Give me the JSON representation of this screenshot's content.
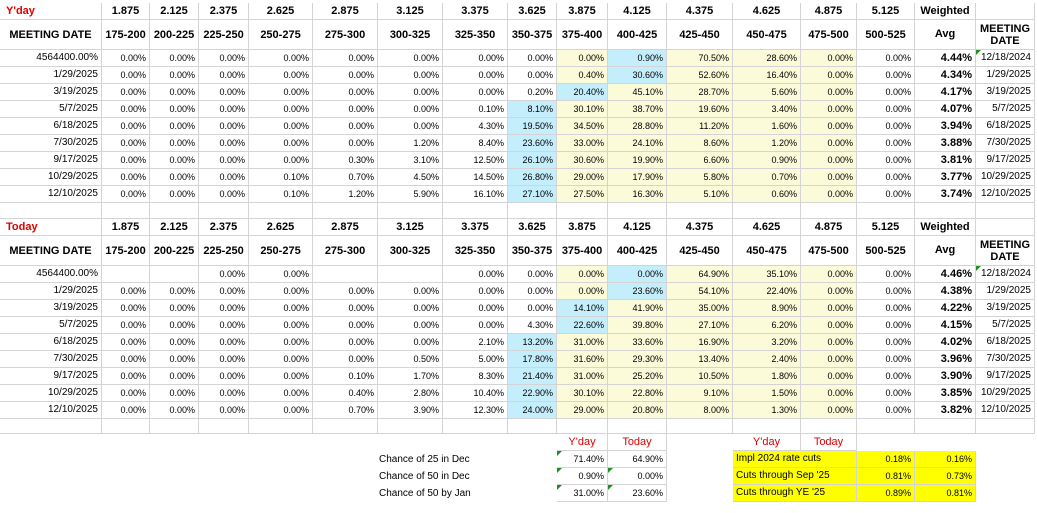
{
  "sections": [
    {
      "title": "Y'day",
      "strikes": [
        "1.875",
        "2.125",
        "2.375",
        "2.625",
        "2.875",
        "3.125",
        "3.375",
        "3.625",
        "3.875",
        "4.125",
        "4.375",
        "4.625",
        "4.875",
        "5.125"
      ],
      "weighted_label": "Weighted",
      "meeting_date_label": "MEETING DATE",
      "ranges": [
        "175-200",
        "200-225",
        "225-250",
        "250-275",
        "275-300",
        "300-325",
        "325-350",
        "350-375",
        "375-400",
        "400-425",
        "425-450",
        "450-475",
        "475-500",
        "500-525"
      ],
      "avg_label": "Avg",
      "meeting_date_right_label": "MEETING DATE",
      "rows": [
        {
          "date": "4564400.00%",
          "cells": [
            "0.00%",
            "0.00%",
            "0.00%",
            "0.00%",
            "0.00%",
            "0.00%",
            "0.00%",
            "0.00%",
            "0.00%",
            "0.90%",
            "70.50%",
            "28.60%",
            "0.00%",
            "0.00%"
          ],
          "avg": "4.44%",
          "right_date": "12/18/2024"
        },
        {
          "date": "1/29/2025",
          "cells": [
            "0.00%",
            "0.00%",
            "0.00%",
            "0.00%",
            "0.00%",
            "0.00%",
            "0.00%",
            "0.00%",
            "0.40%",
            "30.60%",
            "52.60%",
            "16.40%",
            "0.00%",
            "0.00%"
          ],
          "avg": "4.34%",
          "right_date": "1/29/2025"
        },
        {
          "date": "3/19/2025",
          "cells": [
            "0.00%",
            "0.00%",
            "0.00%",
            "0.00%",
            "0.00%",
            "0.00%",
            "0.00%",
            "0.20%",
            "20.40%",
            "45.10%",
            "28.70%",
            "5.60%",
            "0.00%",
            "0.00%"
          ],
          "avg": "4.17%",
          "right_date": "3/19/2025"
        },
        {
          "date": "5/7/2025",
          "cells": [
            "0.00%",
            "0.00%",
            "0.00%",
            "0.00%",
            "0.00%",
            "0.00%",
            "0.10%",
            "8.10%",
            "30.10%",
            "38.70%",
            "19.60%",
            "3.40%",
            "0.00%",
            "0.00%"
          ],
          "avg": "4.07%",
          "right_date": "5/7/2025"
        },
        {
          "date": "6/18/2025",
          "cells": [
            "0.00%",
            "0.00%",
            "0.00%",
            "0.00%",
            "0.00%",
            "0.00%",
            "4.30%",
            "19.50%",
            "34.50%",
            "28.80%",
            "11.20%",
            "1.60%",
            "0.00%",
            "0.00%"
          ],
          "avg": "3.94%",
          "right_date": "6/18/2025"
        },
        {
          "date": "7/30/2025",
          "cells": [
            "0.00%",
            "0.00%",
            "0.00%",
            "0.00%",
            "0.00%",
            "1.20%",
            "8.40%",
            "23.60%",
            "33.00%",
            "24.10%",
            "8.60%",
            "1.20%",
            "0.00%",
            "0.00%"
          ],
          "avg": "3.88%",
          "right_date": "7/30/2025"
        },
        {
          "date": "9/17/2025",
          "cells": [
            "0.00%",
            "0.00%",
            "0.00%",
            "0.00%",
            "0.30%",
            "3.10%",
            "12.50%",
            "26.10%",
            "30.60%",
            "19.90%",
            "6.60%",
            "0.90%",
            "0.00%",
            "0.00%"
          ],
          "avg": "3.81%",
          "right_date": "9/17/2025"
        },
        {
          "date": "10/29/2025",
          "cells": [
            "0.00%",
            "0.00%",
            "0.00%",
            "0.10%",
            "0.70%",
            "4.50%",
            "14.50%",
            "26.80%",
            "29.00%",
            "17.90%",
            "5.80%",
            "0.70%",
            "0.00%",
            "0.00%"
          ],
          "avg": "3.77%",
          "right_date": "10/29/2025"
        },
        {
          "date": "12/10/2025",
          "cells": [
            "0.00%",
            "0.00%",
            "0.00%",
            "0.10%",
            "1.20%",
            "5.90%",
            "16.10%",
            "27.10%",
            "27.50%",
            "16.30%",
            "5.10%",
            "0.60%",
            "0.00%",
            "0.00%"
          ],
          "avg": "3.74%",
          "right_date": "12/10/2025"
        }
      ]
    },
    {
      "title": "Today",
      "strikes": [
        "1.875",
        "2.125",
        "2.375",
        "2.625",
        "2.875",
        "3.125",
        "3.375",
        "3.625",
        "3.875",
        "4.125",
        "4.375",
        "4.625",
        "4.875",
        "5.125"
      ],
      "weighted_label": "Weighted",
      "meeting_date_label": "MEETING DATE",
      "ranges": [
        "175-200",
        "200-225",
        "225-250",
        "250-275",
        "275-300",
        "300-325",
        "325-350",
        "350-375",
        "375-400",
        "400-425",
        "425-450",
        "450-475",
        "475-500",
        "500-525"
      ],
      "avg_label": "Avg",
      "meeting_date_right_label": "MEETING DATE",
      "rows": [
        {
          "date": "4564400.00%",
          "cells": [
            "",
            "",
            "0.00%",
            "0.00%",
            "",
            "",
            "0.00%",
            "0.00%",
            "0.00%",
            "0.00%",
            "64.90%",
            "35.10%",
            "0.00%",
            "0.00%"
          ],
          "avg": "4.46%",
          "right_date": "12/18/2024"
        },
        {
          "date": "1/29/2025",
          "cells": [
            "0.00%",
            "0.00%",
            "0.00%",
            "0.00%",
            "0.00%",
            "0.00%",
            "0.00%",
            "0.00%",
            "0.00%",
            "23.60%",
            "54.10%",
            "22.40%",
            "0.00%",
            "0.00%"
          ],
          "avg": "4.38%",
          "right_date": "1/29/2025"
        },
        {
          "date": "3/19/2025",
          "cells": [
            "0.00%",
            "0.00%",
            "0.00%",
            "0.00%",
            "0.00%",
            "0.00%",
            "0.00%",
            "0.00%",
            "14.10%",
            "41.90%",
            "35.00%",
            "8.90%",
            "0.00%",
            "0.00%"
          ],
          "avg": "4.22%",
          "right_date": "3/19/2025"
        },
        {
          "date": "5/7/2025",
          "cells": [
            "0.00%",
            "0.00%",
            "0.00%",
            "0.00%",
            "0.00%",
            "0.00%",
            "0.00%",
            "4.30%",
            "22.60%",
            "39.80%",
            "27.10%",
            "6.20%",
            "0.00%",
            "0.00%"
          ],
          "avg": "4.15%",
          "right_date": "5/7/2025"
        },
        {
          "date": "6/18/2025",
          "cells": [
            "0.00%",
            "0.00%",
            "0.00%",
            "0.00%",
            "0.00%",
            "0.00%",
            "2.10%",
            "13.20%",
            "31.00%",
            "33.60%",
            "16.90%",
            "3.20%",
            "0.00%",
            "0.00%"
          ],
          "avg": "4.02%",
          "right_date": "6/18/2025"
        },
        {
          "date": "7/30/2025",
          "cells": [
            "0.00%",
            "0.00%",
            "0.00%",
            "0.00%",
            "0.00%",
            "0.50%",
            "5.00%",
            "17.80%",
            "31.60%",
            "29.30%",
            "13.40%",
            "2.40%",
            "0.00%",
            "0.00%"
          ],
          "avg": "3.96%",
          "right_date": "7/30/2025"
        },
        {
          "date": "9/17/2025",
          "cells": [
            "0.00%",
            "0.00%",
            "0.00%",
            "0.00%",
            "0.10%",
            "1.70%",
            "8.30%",
            "21.40%",
            "31.00%",
            "25.20%",
            "10.50%",
            "1.80%",
            "0.00%",
            "0.00%"
          ],
          "avg": "3.90%",
          "right_date": "9/17/2025"
        },
        {
          "date": "10/29/2025",
          "cells": [
            "0.00%",
            "0.00%",
            "0.00%",
            "0.00%",
            "0.40%",
            "2.80%",
            "10.40%",
            "22.90%",
            "30.10%",
            "22.80%",
            "9.10%",
            "1.50%",
            "0.00%",
            "0.00%"
          ],
          "avg": "3.85%",
          "right_date": "10/29/2025"
        },
        {
          "date": "12/10/2025",
          "cells": [
            "0.00%",
            "0.00%",
            "0.00%",
            "0.00%",
            "0.70%",
            "3.90%",
            "12.30%",
            "24.00%",
            "29.00%",
            "20.80%",
            "8.00%",
            "1.30%",
            "0.00%",
            "0.00%"
          ],
          "avg": "3.82%",
          "right_date": "12/10/2025"
        }
      ]
    }
  ],
  "chance": {
    "yday_label": "Y'day",
    "today_label": "Today",
    "rows": [
      {
        "label": "Chance of 25 in Dec",
        "yday": "71.40%",
        "today": "64.90%"
      },
      {
        "label": "Chance of 50 in Dec",
        "yday": "0.90%",
        "today": "0.00%"
      },
      {
        "label": "Chance of 50 by Jan",
        "yday": "31.00%",
        "today": "23.60%"
      }
    ]
  },
  "cuts": {
    "yday_label": "Y'day",
    "today_label": "Today",
    "rows": [
      {
        "label": "Impl  2024 rate cuts",
        "yday": "0.18%",
        "today": "0.16%"
      },
      {
        "label": "Cuts through Sep  '25",
        "yday": "0.81%",
        "today": "0.73%"
      },
      {
        "label": "Cuts through YE '25",
        "yday": "0.89%",
        "today": "0.81%"
      }
    ]
  },
  "colors": {
    "title_red": "#e00000",
    "header_gray": "#efefef",
    "highlight_blue": "#c5eefc",
    "highlight_yellow": "#fcfbd9",
    "summary_yellow": "#ffff00",
    "grid_line": "#d4d4d4"
  },
  "icons": [
    "green-corner-triangle-icon"
  ]
}
